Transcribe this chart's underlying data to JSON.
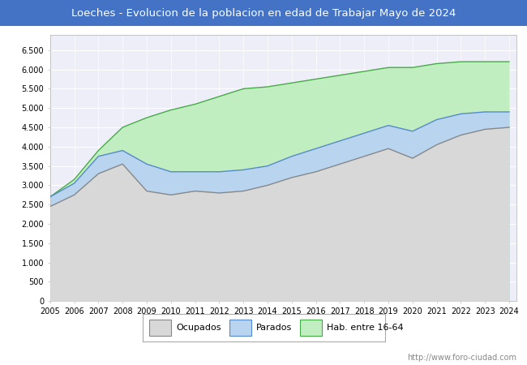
{
  "title": "Loeches - Evolucion de la poblacion en edad de Trabajar Mayo de 2024",
  "title_bg": "#4472c4",
  "title_color": "white",
  "watermark": "http://www.foro-ciudad.com",
  "plot_bg": "#eeeef8",
  "grid_color": "#ffffff",
  "years": [
    2005,
    2006,
    2007,
    2008,
    2009,
    2010,
    2011,
    2012,
    2013,
    2014,
    2015,
    2016,
    2017,
    2018,
    2019,
    2020,
    2021,
    2022,
    2023,
    2024
  ],
  "ocupados": [
    2450,
    2750,
    3300,
    3550,
    2850,
    2750,
    2850,
    2800,
    2850,
    3000,
    3200,
    3350,
    3550,
    3750,
    3950,
    3700,
    4050,
    4300,
    4450,
    4500
  ],
  "parados": [
    2700,
    3050,
    3750,
    3900,
    3550,
    3350,
    3350,
    3350,
    3400,
    3500,
    3750,
    3950,
    4150,
    4350,
    4550,
    4400,
    4700,
    4850,
    4900,
    4900
  ],
  "hab_16_64": [
    2700,
    3150,
    3900,
    4500,
    4750,
    4950,
    5100,
    5300,
    5500,
    5550,
    5650,
    5750,
    5850,
    5950,
    6050,
    6050,
    6150,
    6200,
    6200,
    6200
  ],
  "yticks": [
    0,
    500,
    1000,
    1500,
    2000,
    2500,
    3000,
    3500,
    4000,
    4500,
    5000,
    5500,
    6000,
    6500
  ],
  "ytick_labels": [
    "0",
    "500",
    "1.000",
    "1.500",
    "2.000",
    "2.500",
    "3.000",
    "3.500",
    "4.000",
    "4.500",
    "5.000",
    "5.500",
    "6.000",
    "6.500"
  ],
  "ocupados_fill": "#d8d8d8",
  "parados_fill": "#b8d4ee",
  "hab_fill": "#c0eec0",
  "ocupados_line": "#888888",
  "parados_line": "#5588cc",
  "hab_line": "#44aa44",
  "legend_labels": [
    "Ocupados",
    "Parados",
    "Hab. entre 16-64"
  ]
}
